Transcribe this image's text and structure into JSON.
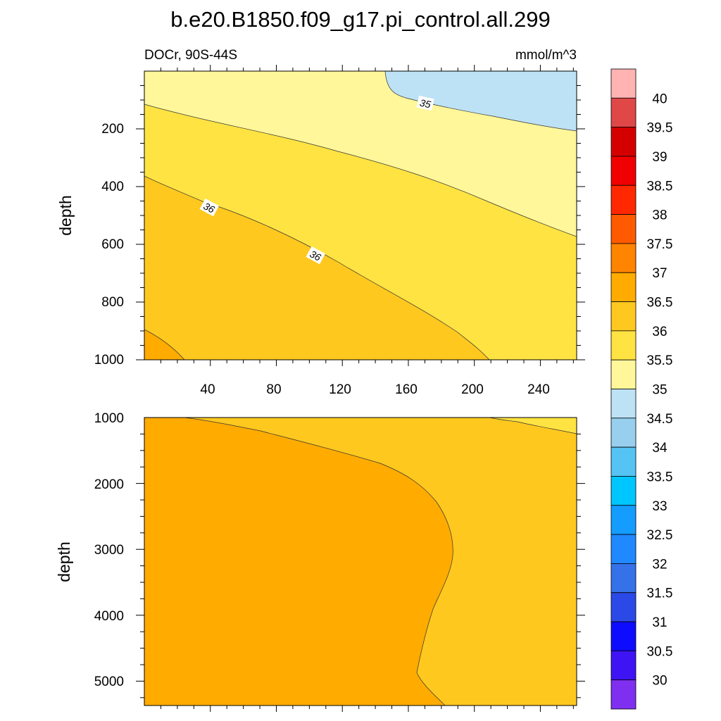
{
  "chart_data": {
    "type": "heatmap",
    "title": "b.e20.B1850.f09_g17.pi_control.all.299",
    "left_subtitle": "DOCr, 90S-44S",
    "right_subtitle": "mmol/m^3",
    "colorbar": {
      "labels": [
        "40",
        "39.5",
        "39",
        "38.5",
        "38",
        "37.5",
        "37",
        "36.5",
        "36",
        "35.5",
        "35",
        "34.5",
        "34",
        "33.5",
        "33",
        "32.5",
        "32",
        "31.5",
        "31",
        "30.5",
        "30"
      ],
      "colors_top_to_bottom": [
        "#ffb3b3",
        "#e04848",
        "#d40000",
        "#f00000",
        "#ff2800",
        "#ff5a00",
        "#ff8400",
        "#ffab00",
        "#fec81f",
        "#ffe342",
        "#fff799",
        "#bde2f5",
        "#98cfee",
        "#55c3f4",
        "#00c6ff",
        "#149cff",
        "#2089ff",
        "#3572ea",
        "#2b49e6",
        "#0e0cff",
        "#3f14f4",
        "#7f2ff0"
      ]
    },
    "panels": [
      {
        "name": "upper",
        "xlim": [
          0,
          262
        ],
        "ylim": [
          0,
          1000
        ],
        "ylabel": "depth",
        "x_ticks": [
          "40",
          "80",
          "120",
          "160",
          "200",
          "240"
        ],
        "y_ticks": [
          "200",
          "400",
          "600",
          "800",
          "1000"
        ],
        "contour_labels": [
          "35",
          "36",
          "36"
        ],
        "bands": [
          {
            "value_range": "34.5-35",
            "color": "#bde2f5"
          },
          {
            "value_range": "35-35.5",
            "color": "#fff799"
          },
          {
            "value_range": "35.5-36",
            "color": "#ffe342"
          },
          {
            "value_range": "36-36.5",
            "color": "#fec81f"
          },
          {
            "value_range": "36.5-37",
            "color": "#ffab00"
          }
        ]
      },
      {
        "name": "lower",
        "xlim": [
          0,
          262
        ],
        "ylim": [
          1000,
          5400
        ],
        "ylabel": "depth",
        "x_ticks": [],
        "y_ticks": [
          "1000",
          "2000",
          "3000",
          "4000",
          "5000"
        ],
        "bands": [
          {
            "value_range": "35.5-36",
            "color": "#ffe342"
          },
          {
            "value_range": "36-36.5",
            "color": "#fec81f"
          },
          {
            "value_range": "36.5-37",
            "color": "#ffab00"
          }
        ]
      }
    ]
  }
}
